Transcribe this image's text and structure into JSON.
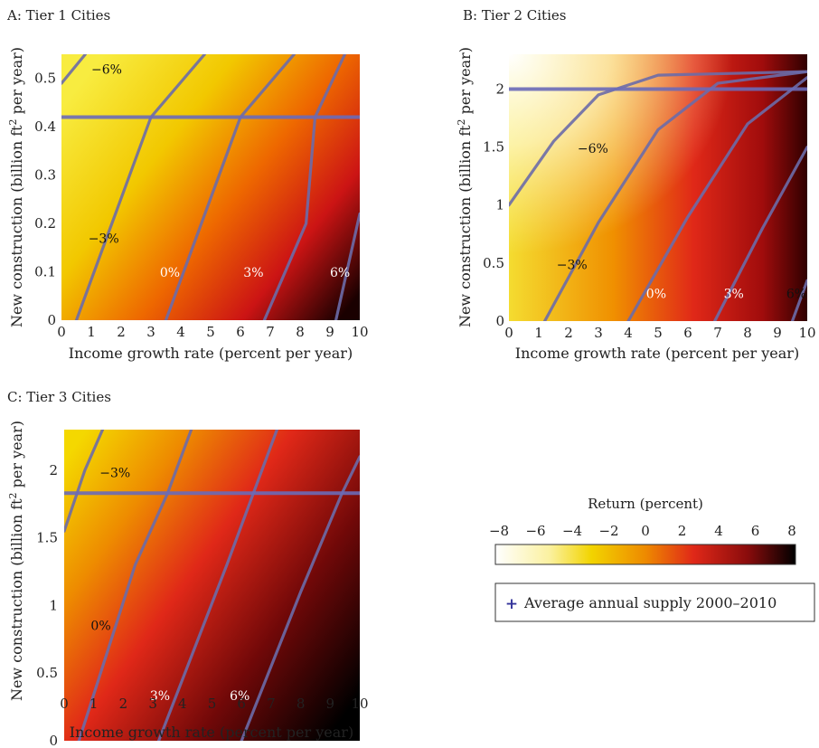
{
  "panels": [
    {
      "id": "A",
      "title": "A: Tier 1 Cities",
      "xlabel": "Income growth rate (percent per year)",
      "ylabel_main": "New construction (billion ft",
      "ylabel_sup": "2",
      "ylabel_end": " per year)",
      "xlim": [
        0,
        10
      ],
      "ylim": [
        0,
        0.55
      ],
      "x_ticks": [
        "0",
        "1",
        "2",
        "3",
        "4",
        "5",
        "6",
        "7",
        "8",
        "9",
        "10"
      ],
      "y_ticks": [
        "0",
        "0.1",
        "0.2",
        "0.3",
        "0.4",
        "0.5"
      ]
    },
    {
      "id": "B",
      "title": "B: Tier 2 Cities",
      "xlabel": "Income growth rate (percent per year)",
      "ylabel_main": "New construction (billion ft",
      "ylabel_sup": "2",
      "ylabel_end": " per year)",
      "xlim": [
        0,
        10
      ],
      "ylim": [
        0,
        2.3
      ],
      "x_ticks": [
        "0",
        "1",
        "2",
        "3",
        "4",
        "5",
        "6",
        "7",
        "8",
        "9",
        "10"
      ],
      "y_ticks": [
        "0",
        "0.5",
        "1",
        "1.5",
        "2"
      ]
    },
    {
      "id": "C",
      "title": "C: Tier 3 Cities",
      "xlabel": "Income growth rate (percent per year)",
      "ylabel_main": "New construction (billion ft",
      "ylabel_sup": "2",
      "ylabel_end": " per year)",
      "xlim": [
        0,
        10
      ],
      "ylim": [
        0,
        2.3
      ],
      "x_ticks": [
        "0",
        "1",
        "2",
        "3",
        "4",
        "5",
        "6",
        "7",
        "8",
        "9",
        "10"
      ],
      "y_ticks": [
        "0",
        "0.5",
        "1",
        "1.5",
        "2"
      ]
    }
  ],
  "legend": {
    "colorbar_title": "Return (percent)",
    "colorbar_ticks": [
      "−8",
      "−6",
      "−4",
      "−2",
      "0",
      "2",
      "4",
      "6",
      "8"
    ],
    "colorbar_range": [
      -8,
      8
    ],
    "marker_label": "Average annual supply 2000–2010",
    "marker_symbol": "+"
  },
  "colors": {
    "low": "#fffde6",
    "mid_low": "#f2d400",
    "mid": "#e85a00",
    "mid_high": "#c81010",
    "high": "#000000",
    "contour": "#6b6ba8",
    "supply_line": "#6b6bb8",
    "label_dark": "#111111",
    "label_light": "#ffffff"
  },
  "chart_data": [
    {
      "type": "heatmap",
      "title": "A: Tier 1 Cities",
      "xlabel": "Income growth rate (percent per year)",
      "ylabel": "New construction (billion ft2 per year)",
      "xlim": [
        0,
        10
      ],
      "ylim": [
        0,
        0.55
      ],
      "value": "Return (percent)",
      "value_range": [
        -8,
        8
      ],
      "contours": [
        {
          "label": "−6%",
          "value": -6,
          "points": [
            [
              0.0,
              0.49
            ],
            [
              0.8,
              0.55
            ]
          ],
          "label_at": [
            1.0,
            0.51
          ],
          "label_color": "dark"
        },
        {
          "label": "−3%",
          "value": -3,
          "points": [
            [
              0.5,
              0.0
            ],
            [
              3.0,
              0.42
            ],
            [
              4.8,
              0.55
            ]
          ],
          "label_at": [
            0.9,
            0.16
          ],
          "label_color": "dark"
        },
        {
          "label": "0%",
          "value": 0,
          "points": [
            [
              3.5,
              0.0
            ],
            [
              6.0,
              0.42
            ],
            [
              7.8,
              0.55
            ]
          ],
          "label_at": [
            3.3,
            0.09
          ],
          "label_color": "light"
        },
        {
          "label": "3%",
          "value": 3,
          "points": [
            [
              6.8,
              0.0
            ],
            [
              8.2,
              0.2
            ],
            [
              8.5,
              0.42
            ],
            [
              9.5,
              0.55
            ]
          ],
          "label_at": [
            6.1,
            0.09
          ],
          "label_color": "light"
        },
        {
          "label": "6%",
          "value": 6,
          "points": [
            [
              9.2,
              0.0
            ],
            [
              10.0,
              0.22
            ]
          ],
          "label_at": [
            9.0,
            0.09
          ],
          "label_color": "light"
        }
      ],
      "supply_line": {
        "label": "Average annual supply 2000–2010",
        "y": 0.42
      }
    },
    {
      "type": "heatmap",
      "title": "B: Tier 2 Cities",
      "xlabel": "Income growth rate (percent per year)",
      "ylabel": "New construction (billion ft2 per year)",
      "xlim": [
        0,
        10
      ],
      "ylim": [
        0,
        2.3
      ],
      "value": "Return (percent)",
      "value_range": [
        -8,
        8
      ],
      "contours": [
        {
          "label": "−6%",
          "value": -6,
          "points": [
            [
              0.0,
              1.0
            ],
            [
              1.5,
              1.55
            ],
            [
              3.0,
              1.95
            ],
            [
              5.0,
              2.12
            ],
            [
              10.0,
              2.15
            ]
          ],
          "label_at": [
            2.3,
            1.45
          ],
          "label_color": "dark"
        },
        {
          "label": "−3%",
          "value": -3,
          "points": [
            [
              1.2,
              0.0
            ],
            [
              3.0,
              0.85
            ],
            [
              5.0,
              1.65
            ],
            [
              7.0,
              2.05
            ],
            [
              10.0,
              2.15
            ]
          ],
          "label_at": [
            1.6,
            0.45
          ],
          "label_color": "dark"
        },
        {
          "label": "0%",
          "value": 0,
          "points": [
            [
              4.0,
              0.0
            ],
            [
              6.0,
              0.9
            ],
            [
              8.0,
              1.7
            ],
            [
              10.0,
              2.1
            ]
          ],
          "label_at": [
            4.6,
            0.2
          ],
          "label_color": "light"
        },
        {
          "label": "3%",
          "value": 3,
          "points": [
            [
              6.9,
              0.0
            ],
            [
              8.5,
              0.8
            ],
            [
              10.0,
              1.5
            ]
          ],
          "label_at": [
            7.2,
            0.2
          ],
          "label_color": "light"
        },
        {
          "label": "6%",
          "value": 6,
          "points": [
            [
              9.5,
              0.0
            ],
            [
              10.0,
              0.35
            ]
          ],
          "label_at": [
            9.3,
            0.2
          ],
          "label_color": "dark"
        }
      ],
      "supply_line": {
        "label": "Average annual supply 2000–2010",
        "y": 2.0
      }
    },
    {
      "type": "heatmap",
      "title": "C: Tier 3 Cities",
      "xlabel": "Income growth rate (percent per year)",
      "ylabel": "New construction (billion ft2 per year)",
      "xlim": [
        0,
        10
      ],
      "ylim": [
        0,
        2.3
      ],
      "value": "Return (percent)",
      "value_range": [
        -8,
        8
      ],
      "contours": [
        {
          "label": "−3%",
          "value": -3,
          "points": [
            [
              0.0,
              1.55
            ],
            [
              0.7,
              2.0
            ],
            [
              1.3,
              2.3
            ]
          ],
          "label_at": [
            1.2,
            1.95
          ],
          "label_color": "dark"
        },
        {
          "label": "0%",
          "value": 0,
          "points": [
            [
              0.5,
              0.0
            ],
            [
              2.4,
              1.3
            ],
            [
              3.5,
              1.83
            ],
            [
              4.3,
              2.3
            ]
          ],
          "label_at": [
            0.9,
            0.82
          ],
          "label_color": "dark"
        },
        {
          "label": "3%",
          "value": 3,
          "points": [
            [
              3.2,
              0.0
            ],
            [
              5.5,
              1.3
            ],
            [
              6.4,
              1.83
            ],
            [
              7.2,
              2.3
            ]
          ],
          "label_at": [
            2.9,
            0.3
          ],
          "label_color": "light"
        },
        {
          "label": "6%",
          "value": 6,
          "points": [
            [
              6.0,
              0.0
            ],
            [
              8.0,
              1.1
            ],
            [
              9.4,
              1.83
            ],
            [
              10.0,
              2.1
            ]
          ],
          "label_at": [
            5.6,
            0.3
          ],
          "label_color": "light"
        }
      ],
      "supply_line": {
        "label": "Average annual supply 2000–2010",
        "y": 1.83
      }
    }
  ]
}
